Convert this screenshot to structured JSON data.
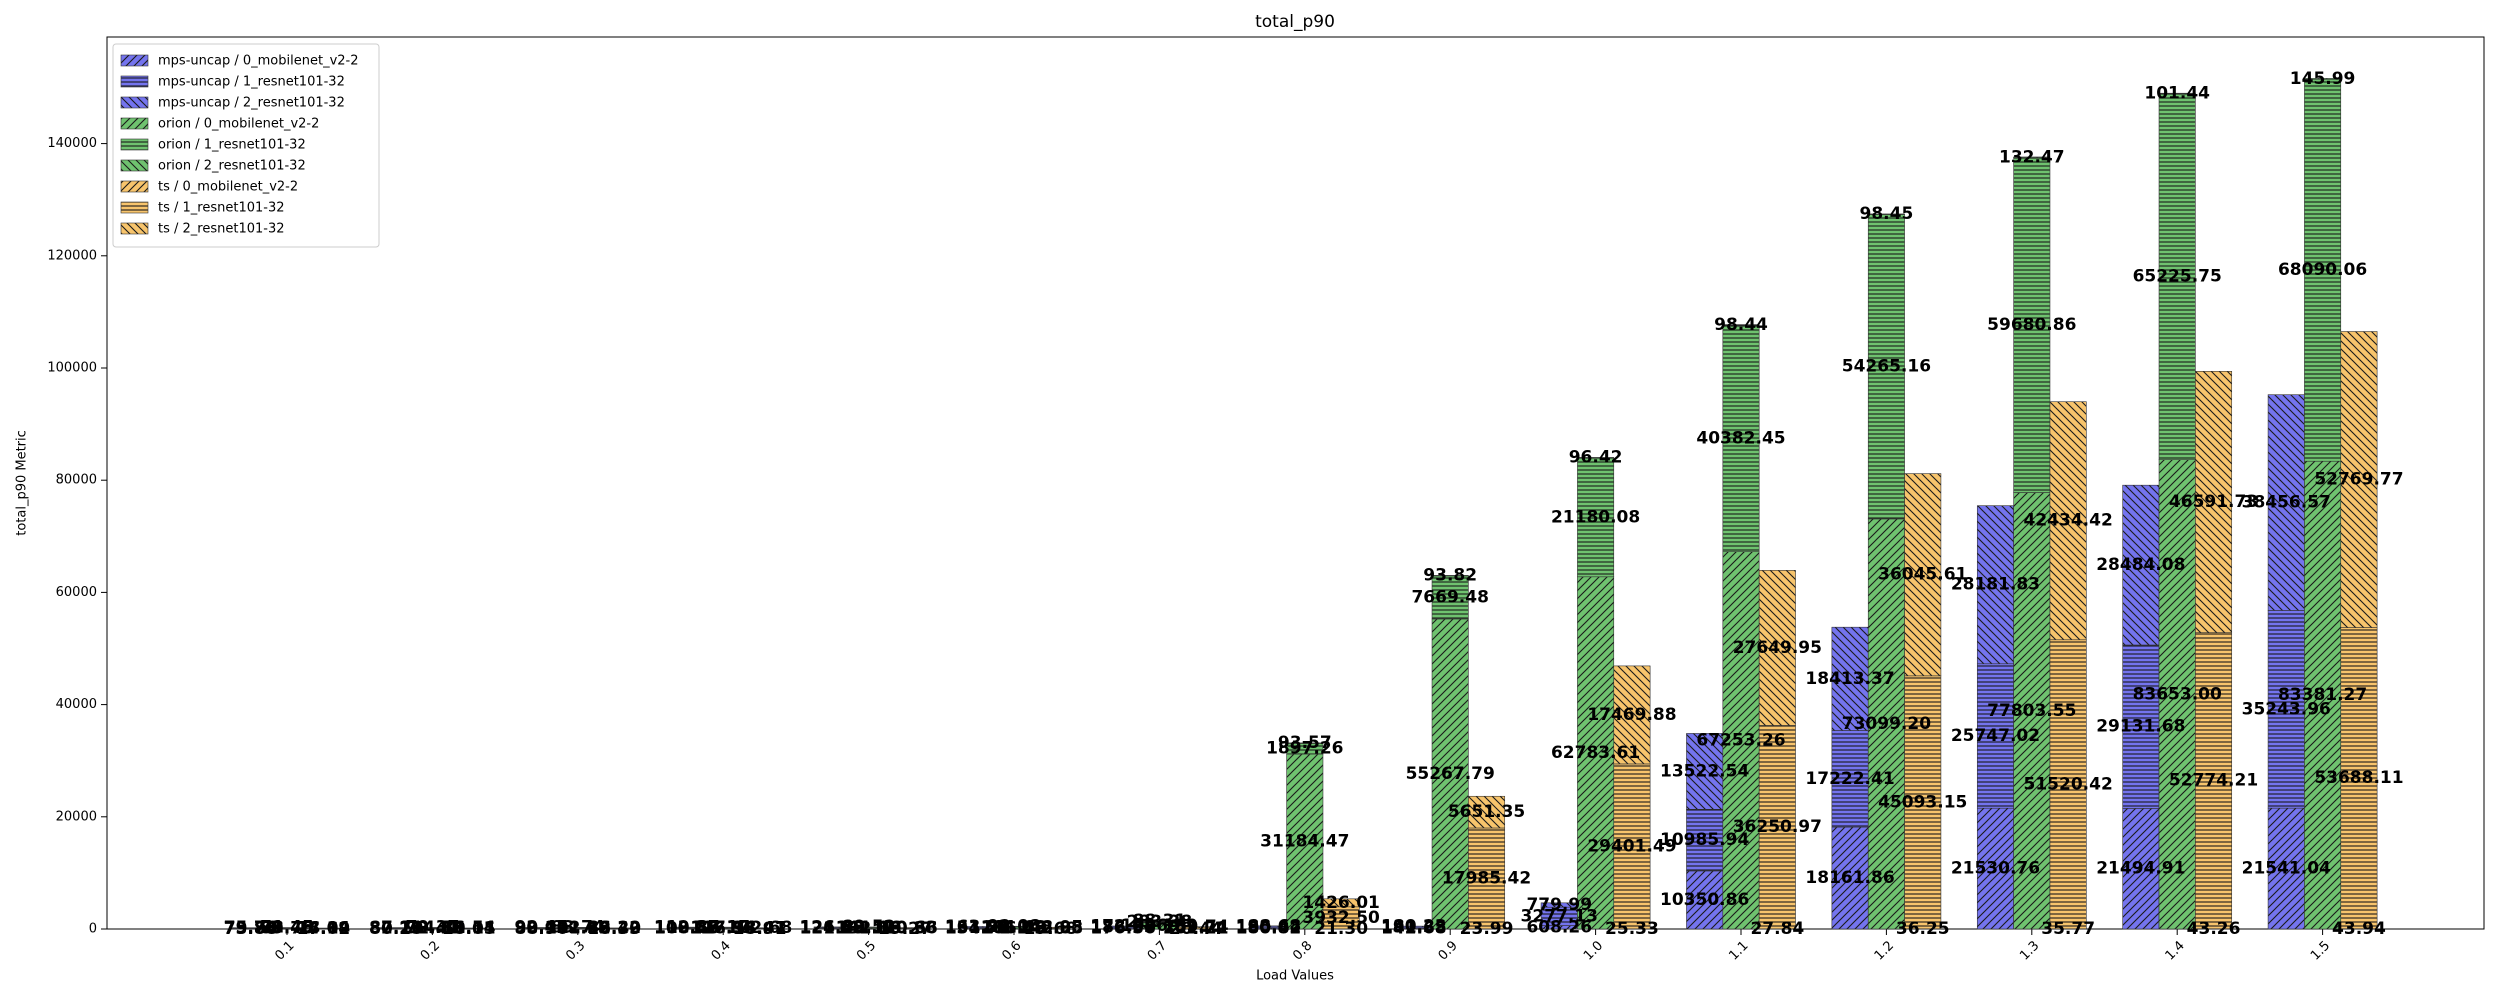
{
  "chart_data": {
    "type": "stacked_grouped_bar",
    "title": "total_p90",
    "x_label": "Load Values",
    "y_label": "total_p90 Metric",
    "categories": [
      "0.1",
      "0.2",
      "0.3",
      "0.4",
      "0.5",
      "0.6",
      "0.7",
      "0.8",
      "0.9",
      "1.0",
      "1.1",
      "1.2",
      "1.3",
      "1.4",
      "1.5"
    ],
    "groups": [
      "mps-uncap",
      "orion",
      "ts"
    ],
    "ylim": [
      0,
      159000
    ],
    "yticks": [
      0,
      20000,
      40000,
      60000,
      80000,
      100000,
      120000,
      140000
    ],
    "legend": "upper left",
    "series": [
      {
        "name": "mps-uncap / 0_mobilenet_v2-2",
        "group": "mps-uncap",
        "color": "#7474ee",
        "hatch": "///",
        "values": [
          73.88,
          80.25,
          88.96,
          108.45,
          121.23,
          134.71,
          176.56,
          180.82,
          142.68,
          608.26,
          10350.86,
          18161.86,
          21530.76,
          21494.91,
          21541.04
        ]
      },
      {
        "name": "mps-uncap / 1_resnet101-32",
        "group": "mps-uncap",
        "color": "#7474ee",
        "hatch": "---",
        "values": [
          79.84,
          82.23,
          90.12,
          110.88,
          124.85,
          151.73,
          186.93,
          190.42,
          191.35,
          3277.13,
          10985.94,
          17222.41,
          25747.02,
          29131.68,
          35243.96
        ]
      },
      {
        "name": "mps-uncap / 2_resnet101-32",
        "group": "mps-uncap",
        "color": "#7474ee",
        "hatch": "\\\\\\",
        "values": [
          75.76,
          87.11,
          92.45,
          112.37,
          126.42,
          163.28,
          172.84,
          188.68,
          180.23,
          779.99,
          13522.54,
          18413.37,
          28181.83,
          28484.08,
          38456.57
        ]
      },
      {
        "name": "orion / 0_mobilenet_v2-2",
        "group": "orion",
        "color": "#6fc26f",
        "hatch": "///",
        "values": [
          89.78,
          92.41,
          101.62,
          116.93,
          132.58,
          186.45,
          1096.39,
          31184.47,
          55267.79,
          62783.61,
          67253.26,
          73099.2,
          77803.55,
          83653,
          83381.27
        ],
        "value_labels": [
          "89.78",
          "92.41",
          "101.62",
          "116.93",
          "132.58",
          "186.45",
          "1096.39",
          "31184.47",
          "55267.79",
          "62783.61",
          "67253.26",
          "73099.20",
          "77803.55",
          "83653.00",
          "83381.27"
        ]
      },
      {
        "name": "orion / 1_resnet101-32",
        "group": "orion",
        "color": "#6fc26f",
        "hatch": "---",
        "values": [
          98.46,
          104.56,
          112.29,
          127.34,
          141.06,
          211.63,
          283.38,
          1897.26,
          7669.48,
          21180.08,
          40382.45,
          54265.16,
          59680.86,
          65225.75,
          68090.06
        ]
      },
      {
        "name": "orion / 2_resnet101-32",
        "group": "orion",
        "color": "#6fc26f",
        "hatch": "\\\\\\",
        "values": [
          71.45,
          79.37,
          83.74,
          86.17,
          89.52,
          92.08,
          88.31,
          93.57,
          93.82,
          96.42,
          98.44,
          98.45,
          132.47,
          101.44,
          145.99
        ]
      },
      {
        "name": "ts / 0_mobilenet_v2-2",
        "group": "ts",
        "color": "#f7c46c",
        "hatch": "///",
        "values": [
          17.62,
          18.05,
          18.33,
          18.91,
          19.27,
          19.68,
          20.44,
          21.3,
          23.99,
          25.33,
          27.84,
          36.25,
          35.77,
          43.26,
          43.94
        ],
        "value_labels": [
          "17.62",
          "18.05",
          "18.33",
          "18.91",
          "19.27",
          "19.68",
          "20.44",
          "21.30",
          "23.99",
          "25.33",
          "27.84",
          "36.25",
          "35.77",
          "43.26",
          "43.94"
        ]
      },
      {
        "name": "ts / 1_resnet101-32",
        "group": "ts",
        "color": "#f7c46c",
        "hatch": "---",
        "values": [
          78.04,
          80.11,
          85.4,
          98.47,
          110.36,
          142.88,
          201.21,
          3932.5,
          17985.42,
          29401.49,
          36250.97,
          45093.15,
          51520.42,
          52774.21,
          53688.11
        ],
        "value_labels": [
          "78.04",
          "80.11",
          "85.40",
          "98.47",
          "110.36",
          "142.88",
          "201.21",
          "3932.50",
          "17985.42",
          "29401.49",
          "36250.97",
          "45093.15",
          "51520.42",
          "52774.21",
          "53688.11"
        ]
      },
      {
        "name": "ts / 2_resnet101-32",
        "group": "ts",
        "color": "#f7c46c",
        "hatch": "\\\\\\",
        "values": [
          74.19,
          81.54,
          86.22,
          102.68,
          120.63,
          148.95,
          189.74,
          1426.01,
          5651.35,
          17469.88,
          27649.95,
          36045.61,
          42434.42,
          46591.73,
          52769.77
        ]
      }
    ]
  }
}
